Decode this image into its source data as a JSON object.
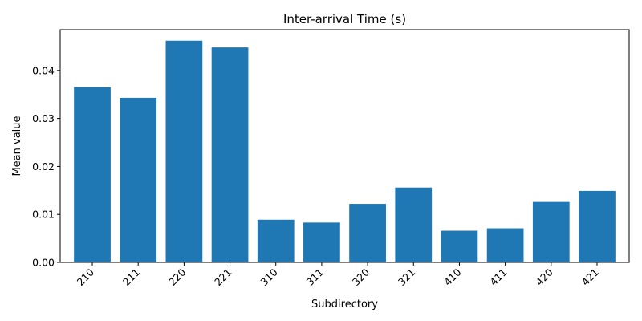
{
  "chart_data": {
    "type": "bar",
    "title": "Inter-arrival Time (s)",
    "xlabel": "Subdirectory",
    "ylabel": "Mean value",
    "categories": [
      "210",
      "211",
      "220",
      "221",
      "310",
      "311",
      "320",
      "321",
      "410",
      "411",
      "420",
      "421"
    ],
    "values": [
      0.0365,
      0.0343,
      0.0462,
      0.0448,
      0.0089,
      0.0083,
      0.0122,
      0.0156,
      0.0066,
      0.0071,
      0.0126,
      0.0149
    ],
    "yticks": [
      "0.00",
      "0.01",
      "0.02",
      "0.03",
      "0.04"
    ],
    "ylim": [
      0,
      0.0485
    ],
    "grid": false,
    "bar_color": "#1f77b4"
  }
}
